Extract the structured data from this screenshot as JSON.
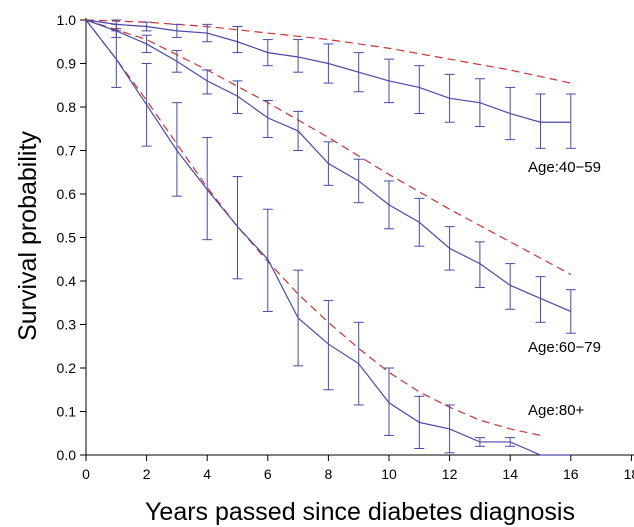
{
  "chart_data": {
    "type": "line",
    "xlabel": "Years passed since diabetes diagnosis",
    "ylabel": "Survival probability",
    "xlim": [
      0,
      18
    ],
    "ylim": [
      0.0,
      1.0
    ],
    "x_ticks": [
      0,
      2,
      4,
      6,
      8,
      10,
      12,
      14,
      16,
      18
    ],
    "y_ticks": [
      "0.0",
      "0.1",
      "0.2",
      "0.3",
      "0.4",
      "0.5",
      "0.6",
      "0.7",
      "0.8",
      "0.9",
      "1.0"
    ],
    "grid": false,
    "colors": {
      "observed": "#4a4aa8",
      "expected": "#cc3333"
    },
    "groups": [
      {
        "label": "Age:40−59",
        "observed": {
          "x": [
            0,
            1,
            2,
            3,
            4,
            5,
            6,
            7,
            8,
            9,
            10,
            11,
            12,
            13,
            14,
            15,
            16
          ],
          "y": [
            1.0,
            0.99,
            0.985,
            0.975,
            0.97,
            0.95,
            0.925,
            0.915,
            0.9,
            0.88,
            0.86,
            0.845,
            0.82,
            0.81,
            0.785,
            0.765,
            0.765
          ],
          "lower": [
            1.0,
            0.98,
            0.975,
            0.96,
            0.95,
            0.925,
            0.895,
            0.88,
            0.855,
            0.835,
            0.81,
            0.785,
            0.765,
            0.755,
            0.725,
            0.705,
            0.705
          ],
          "upper": [
            1.0,
            1.0,
            0.995,
            0.99,
            0.99,
            0.985,
            0.955,
            0.955,
            0.945,
            0.925,
            0.91,
            0.895,
            0.875,
            0.865,
            0.845,
            0.83,
            0.83
          ]
        },
        "expected": {
          "x": [
            0,
            2,
            4,
            6,
            8,
            10,
            12,
            14,
            16
          ],
          "y": [
            1.0,
            0.995,
            0.985,
            0.97,
            0.955,
            0.935,
            0.91,
            0.885,
            0.855
          ]
        }
      },
      {
        "label": "Age:60−79",
        "observed": {
          "x": [
            0,
            1,
            2,
            3,
            4,
            5,
            6,
            7,
            8,
            9,
            10,
            11,
            12,
            13,
            14,
            15,
            16
          ],
          "y": [
            1.0,
            0.975,
            0.945,
            0.905,
            0.86,
            0.825,
            0.775,
            0.745,
            0.67,
            0.63,
            0.575,
            0.535,
            0.475,
            0.44,
            0.39,
            0.36,
            0.33
          ],
          "lower": [
            1.0,
            0.96,
            0.925,
            0.88,
            0.83,
            0.785,
            0.73,
            0.7,
            0.62,
            0.58,
            0.52,
            0.48,
            0.425,
            0.385,
            0.335,
            0.305,
            0.28
          ],
          "upper": [
            1.0,
            0.99,
            0.965,
            0.93,
            0.885,
            0.86,
            0.815,
            0.79,
            0.72,
            0.68,
            0.63,
            0.59,
            0.525,
            0.49,
            0.44,
            0.41,
            0.38
          ]
        },
        "expected": {
          "x": [
            0,
            2,
            4,
            6,
            8,
            10,
            12,
            14,
            16
          ],
          "y": [
            1.0,
            0.955,
            0.885,
            0.81,
            0.73,
            0.645,
            0.565,
            0.49,
            0.415
          ]
        }
      },
      {
        "label": "Age:80+",
        "observed": {
          "x": [
            0,
            1,
            2,
            3,
            4,
            5,
            6,
            7,
            8,
            9,
            10,
            11,
            12,
            13,
            14,
            15,
            16
          ],
          "y": [
            1.0,
            0.91,
            0.805,
            0.7,
            0.61,
            0.525,
            0.45,
            0.315,
            0.255,
            0.21,
            0.12,
            0.075,
            0.06,
            0.03,
            0.03,
            0.0,
            0.0
          ],
          "lower": [
            1.0,
            0.845,
            0.71,
            0.595,
            0.495,
            0.405,
            0.33,
            0.205,
            0.15,
            0.115,
            0.045,
            0.015,
            0.005,
            0.02,
            0.02,
            0.0,
            0.0
          ],
          "upper": [
            1.0,
            0.975,
            0.9,
            0.81,
            0.73,
            0.64,
            0.565,
            0.425,
            0.355,
            0.305,
            0.2,
            0.135,
            0.115,
            0.04,
            0.04,
            0.0,
            0.0
          ]
        },
        "expected": {
          "x": [
            0,
            1,
            2,
            3,
            4,
            5,
            6,
            7,
            8,
            9,
            10,
            11,
            12,
            13,
            14,
            15
          ],
          "y": [
            1.0,
            0.91,
            0.815,
            0.715,
            0.615,
            0.525,
            0.445,
            0.37,
            0.305,
            0.245,
            0.19,
            0.145,
            0.11,
            0.08,
            0.06,
            0.045
          ]
        }
      }
    ]
  }
}
